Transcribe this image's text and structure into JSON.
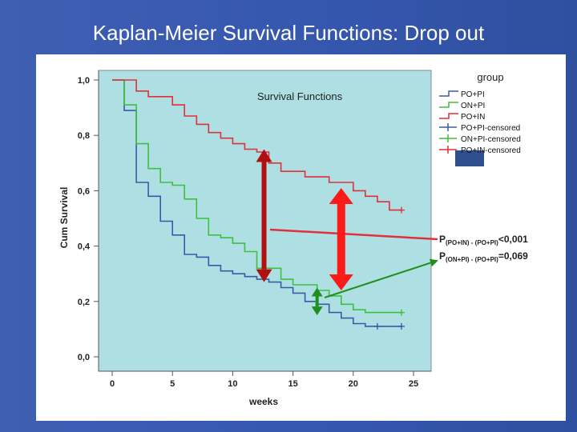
{
  "slide": {
    "title": "Kaplan-Meier Survival Functions: Drop out"
  },
  "colors": {
    "plot_bg": "#aee0e3",
    "PO+PI": "#3b5aa6",
    "ON+PI": "#3fbf3f",
    "PO+IN": "#e0303c",
    "arrow_dark_red": "#b01010",
    "arrow_red": "#ff1a1a",
    "arrow_green": "#1f8f1f",
    "legend_swatch": "#2f4f8f"
  },
  "chart_data": {
    "type": "line",
    "title": "Survival Functions",
    "xlabel": "weeks",
    "ylabel": "Cum Survival",
    "xlim": [
      0,
      25
    ],
    "ylim": [
      0,
      1
    ],
    "x_ticks": [
      "0",
      "5",
      "10",
      "15",
      "20",
      "25"
    ],
    "y_ticks": [
      "0,0",
      "0,2",
      "0,4",
      "0,6",
      "0,8",
      "1,0"
    ],
    "step": true,
    "grid": false,
    "legend_title": "group",
    "legend_position": "top-right",
    "legend": [
      "PO+PI",
      "ON+PI",
      "PO+IN",
      "PO+PI-censored",
      "ON+PI-censored",
      "PO+IN-censored"
    ],
    "series": [
      {
        "name": "PO+PI",
        "color": "#3b5aa6",
        "points": [
          [
            0,
            1.0
          ],
          [
            1,
            1.0
          ],
          [
            1,
            0.89
          ],
          [
            2,
            0.89
          ],
          [
            2,
            0.63
          ],
          [
            3,
            0.63
          ],
          [
            3,
            0.58
          ],
          [
            4,
            0.58
          ],
          [
            4,
            0.49
          ],
          [
            5,
            0.49
          ],
          [
            5,
            0.44
          ],
          [
            6,
            0.44
          ],
          [
            6,
            0.37
          ],
          [
            7,
            0.37
          ],
          [
            7,
            0.36
          ],
          [
            8,
            0.36
          ],
          [
            8,
            0.33
          ],
          [
            9,
            0.33
          ],
          [
            9,
            0.31
          ],
          [
            10,
            0.31
          ],
          [
            10,
            0.3
          ],
          [
            11,
            0.3
          ],
          [
            11,
            0.29
          ],
          [
            12,
            0.29
          ],
          [
            12,
            0.28
          ],
          [
            13,
            0.28
          ],
          [
            13,
            0.27
          ],
          [
            14,
            0.27
          ],
          [
            14,
            0.25
          ],
          [
            15,
            0.25
          ],
          [
            15,
            0.23
          ],
          [
            16,
            0.23
          ],
          [
            16,
            0.2
          ],
          [
            17,
            0.2
          ],
          [
            17,
            0.19
          ],
          [
            18,
            0.19
          ],
          [
            18,
            0.16
          ],
          [
            19,
            0.16
          ],
          [
            19,
            0.14
          ],
          [
            20,
            0.14
          ],
          [
            20,
            0.12
          ],
          [
            21,
            0.12
          ],
          [
            21,
            0.11
          ],
          [
            24,
            0.11
          ]
        ],
        "censored": [
          [
            22,
            0.11
          ],
          [
            24,
            0.11
          ]
        ]
      },
      {
        "name": "ON+PI",
        "color": "#3fbf3f",
        "points": [
          [
            0,
            1.0
          ],
          [
            1,
            1.0
          ],
          [
            1,
            0.91
          ],
          [
            2,
            0.91
          ],
          [
            2,
            0.77
          ],
          [
            3,
            0.77
          ],
          [
            3,
            0.68
          ],
          [
            4,
            0.68
          ],
          [
            4,
            0.63
          ],
          [
            5,
            0.63
          ],
          [
            5,
            0.62
          ],
          [
            6,
            0.62
          ],
          [
            6,
            0.57
          ],
          [
            7,
            0.57
          ],
          [
            7,
            0.5
          ],
          [
            8,
            0.5
          ],
          [
            8,
            0.44
          ],
          [
            9,
            0.44
          ],
          [
            9,
            0.43
          ],
          [
            10,
            0.43
          ],
          [
            10,
            0.41
          ],
          [
            11,
            0.41
          ],
          [
            11,
            0.38
          ],
          [
            12,
            0.38
          ],
          [
            12,
            0.32
          ],
          [
            14,
            0.32
          ],
          [
            14,
            0.28
          ],
          [
            15,
            0.28
          ],
          [
            15,
            0.26
          ],
          [
            17,
            0.26
          ],
          [
            17,
            0.24
          ],
          [
            18,
            0.24
          ],
          [
            18,
            0.22
          ],
          [
            19,
            0.22
          ],
          [
            19,
            0.19
          ],
          [
            20,
            0.19
          ],
          [
            20,
            0.17
          ],
          [
            21,
            0.17
          ],
          [
            21,
            0.16
          ],
          [
            24,
            0.16
          ]
        ],
        "censored": [
          [
            24,
            0.16
          ]
        ]
      },
      {
        "name": "PO+IN",
        "color": "#e0303c",
        "points": [
          [
            0,
            1.0
          ],
          [
            2,
            1.0
          ],
          [
            2,
            0.96
          ],
          [
            3,
            0.96
          ],
          [
            3,
            0.94
          ],
          [
            5,
            0.94
          ],
          [
            5,
            0.91
          ],
          [
            6,
            0.91
          ],
          [
            6,
            0.87
          ],
          [
            7,
            0.87
          ],
          [
            7,
            0.84
          ],
          [
            8,
            0.84
          ],
          [
            8,
            0.81
          ],
          [
            9,
            0.81
          ],
          [
            9,
            0.79
          ],
          [
            10,
            0.79
          ],
          [
            10,
            0.77
          ],
          [
            11,
            0.77
          ],
          [
            11,
            0.75
          ],
          [
            12,
            0.75
          ],
          [
            12,
            0.74
          ],
          [
            13,
            0.74
          ],
          [
            13,
            0.7
          ],
          [
            14,
            0.7
          ],
          [
            14,
            0.67
          ],
          [
            16,
            0.67
          ],
          [
            16,
            0.65
          ],
          [
            18,
            0.65
          ],
          [
            18,
            0.63
          ],
          [
            20,
            0.63
          ],
          [
            20,
            0.6
          ],
          [
            21,
            0.6
          ],
          [
            21,
            0.58
          ],
          [
            22,
            0.58
          ],
          [
            22,
            0.56
          ],
          [
            23,
            0.56
          ],
          [
            23,
            0.53
          ],
          [
            24,
            0.53
          ]
        ],
        "censored": [
          [
            24,
            0.53
          ]
        ]
      }
    ],
    "annotations": {
      "p1_label": "P",
      "p1_sub": "(PO+IN) - (PO+PI)",
      "p1_value": "<0,001",
      "p2_label": "P",
      "p2_sub": "(ON+PI) - (PO+PI)",
      "p2_value": "=0,069"
    }
  }
}
